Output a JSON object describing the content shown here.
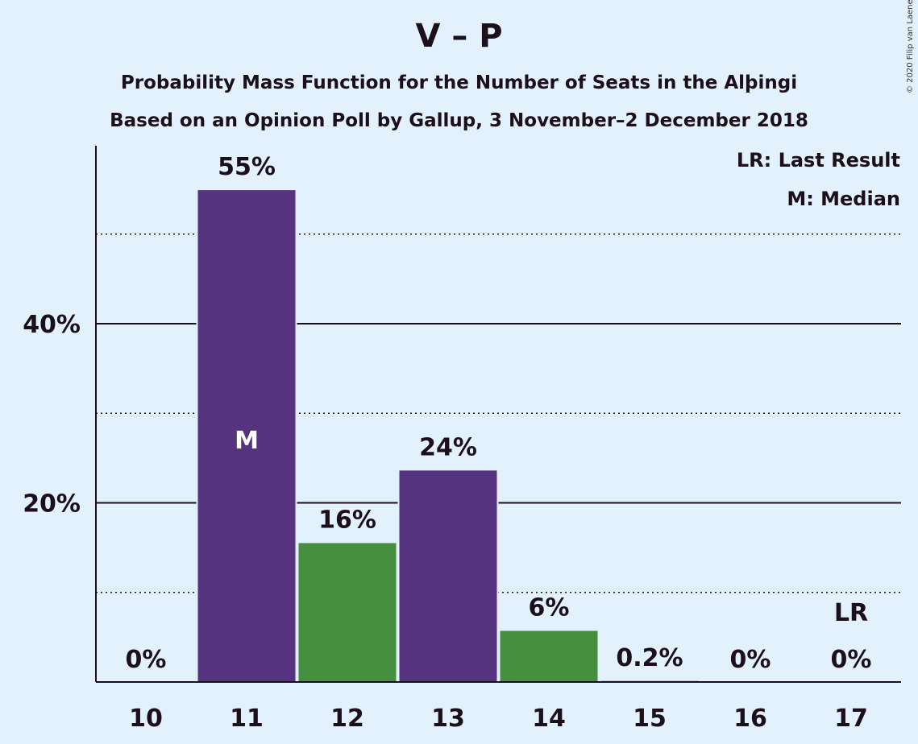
{
  "title": "V – P",
  "subtitle_1": "Probability Mass Function for the Number of Seats in the Alþingi",
  "subtitle_2": "Based on an Opinion Poll by Gallup, 3 November–2 December 2018",
  "legend": {
    "last_result": "LR: Last Result",
    "median": "M: Median"
  },
  "copyright": "© 2020 Filip van Laenen",
  "colors": {
    "background": "#e3f1fd",
    "purple": "#55337f",
    "green": "#468f3f",
    "text": "#1a0f1a"
  },
  "chart_data": {
    "type": "bar",
    "categories": [
      "10",
      "11",
      "12",
      "13",
      "14",
      "15",
      "16",
      "17"
    ],
    "values": [
      0,
      55,
      15.6,
      23.7,
      5.8,
      0.2,
      0,
      0
    ],
    "data_labels": [
      "0%",
      "55%",
      "16%",
      "24%",
      "6%",
      "0.2%",
      "0%",
      "0%"
    ],
    "bar_colors": [
      "purple",
      "purple",
      "green",
      "purple",
      "green",
      "purple",
      "green",
      "purple"
    ],
    "median_index": 1,
    "median_label": "M",
    "last_result_index": 7,
    "last_result_label": "LR",
    "ylim": [
      0,
      60
    ],
    "y_ticks": [
      20,
      40
    ],
    "y_tick_labels": [
      "20%",
      "40%"
    ],
    "y_minor_gridlines": [
      10,
      30,
      50
    ],
    "grid": true,
    "legend_placement": "top-right"
  }
}
